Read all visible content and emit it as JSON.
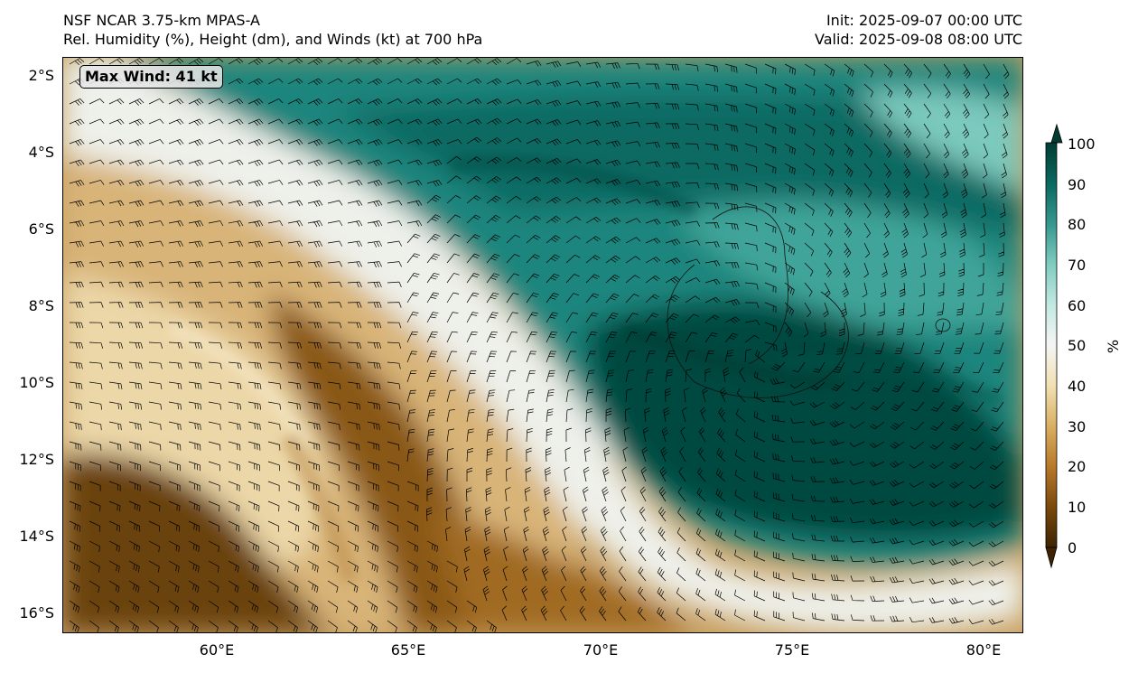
{
  "header": {
    "left_line1": "NSF NCAR 3.75-km MPAS-A",
    "left_line2": "Rel. Humidity (%), Height (dm), and Winds (kt) at 700 hPa",
    "right_line1": "Init: 2025-09-07 00:00 UTC",
    "right_line2": "Valid: 2025-09-08 08:00 UTC"
  },
  "badge": {
    "max_wind": "Max Wind: 41 kt"
  },
  "axes": {
    "lat_ticks": [
      "2°S",
      "4°S",
      "6°S",
      "8°S",
      "10°S",
      "12°S",
      "14°S",
      "16°S"
    ],
    "lon_ticks": [
      "60°E",
      "65°E",
      "70°E",
      "75°E",
      "80°E"
    ],
    "lon_range": [
      56,
      81
    ],
    "lat_range": [
      -16.5,
      -1.5
    ]
  },
  "colorbar": {
    "units": "%",
    "ticks": [
      "0",
      "10",
      "20",
      "30",
      "40",
      "50",
      "60",
      "70",
      "80",
      "90",
      "100"
    ],
    "min": 0,
    "max": 100,
    "colors": [
      "#3e2303",
      "#7a4a0c",
      "#b8792a",
      "#d9b063",
      "#f2e0b3",
      "#f5f5f5",
      "#c2e8e2",
      "#7fccc0",
      "#36978f",
      "#0b6861",
      "#013c33"
    ]
  },
  "colors": {
    "dry": "#8c5a16",
    "moist": "#0d6e66",
    "barb": "#000000"
  }
}
